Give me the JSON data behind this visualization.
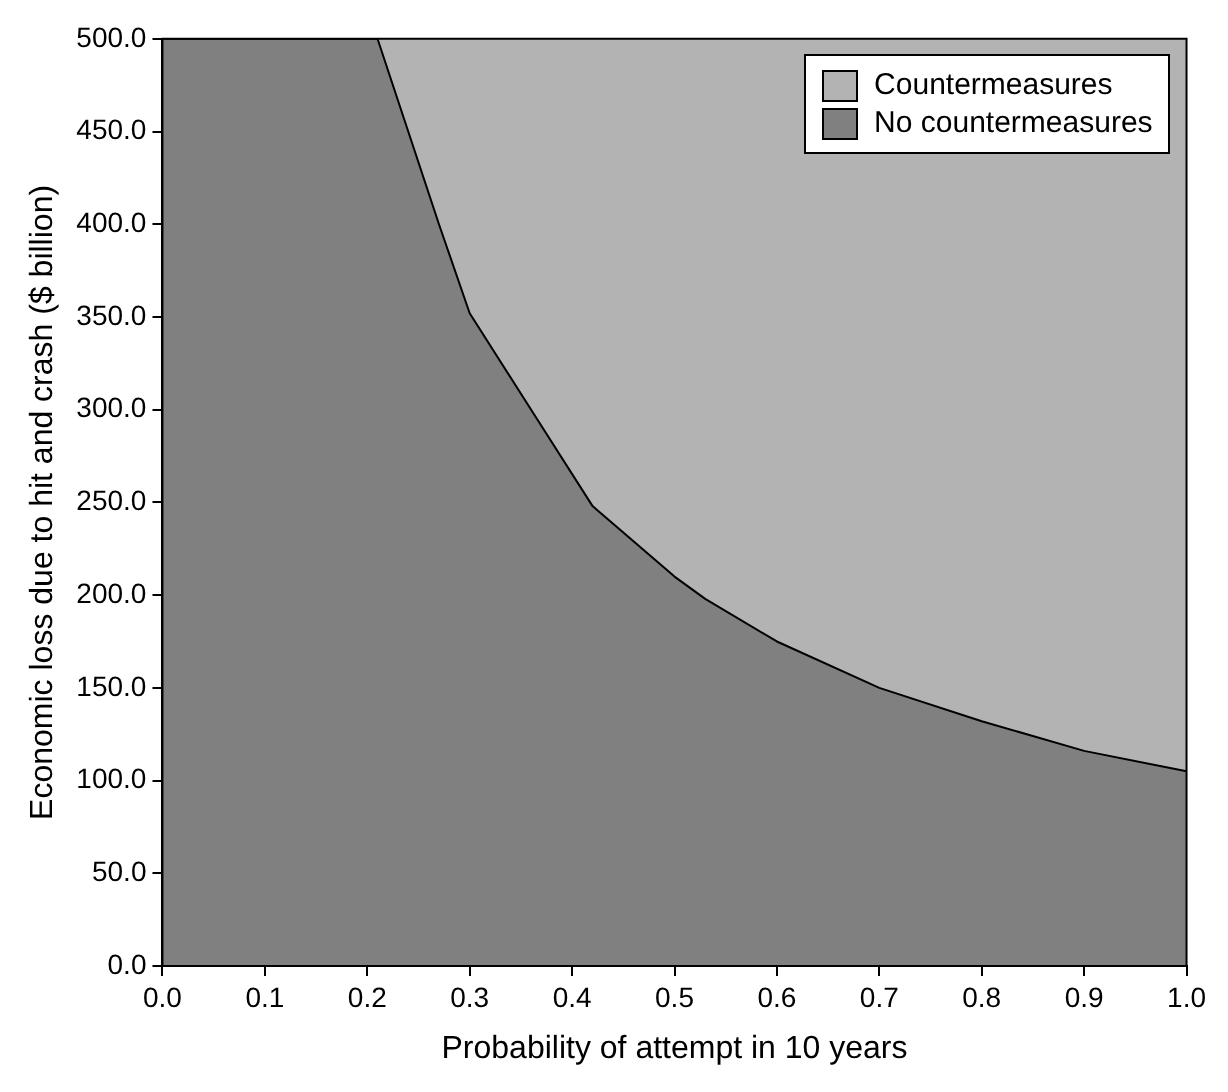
{
  "chart_data": {
    "type": "area",
    "stacked": true,
    "xlabel": "Probability of attempt in 10 years",
    "ylabel": "Economic loss due to hit and crash ($ billion)",
    "series": [
      {
        "name": "No countermeasures",
        "color": "#808080",
        "values": [
          500,
          500,
          450,
          400,
          352,
          300,
          248,
          210,
          198,
          175,
          150,
          132,
          116,
          105
        ]
      },
      {
        "name": "Countermeasures",
        "color": "#b3b3b3",
        "values": [
          0,
          0,
          50,
          100,
          148,
          200,
          252,
          290,
          302,
          325,
          350,
          368,
          384,
          395
        ]
      }
    ],
    "x": [
      0.0,
      0.21,
      0.24,
      0.27,
      0.3,
      0.36,
      0.42,
      0.5,
      0.53,
      0.6,
      0.7,
      0.8,
      0.9,
      1.0
    ],
    "xlim": [
      0,
      1
    ],
    "xticks": [
      {
        "value": 0,
        "label": "0.0"
      },
      {
        "value": 0.1,
        "label": "0.1"
      },
      {
        "value": 0.2,
        "label": "0.2"
      },
      {
        "value": 0.3,
        "label": "0.3"
      },
      {
        "value": 0.4,
        "label": "0.4"
      },
      {
        "value": 0.5,
        "label": "0.5"
      },
      {
        "value": 0.6,
        "label": "0.6"
      },
      {
        "value": 0.7,
        "label": "0.7"
      },
      {
        "value": 0.8,
        "label": "0.8"
      },
      {
        "value": 0.9,
        "label": "0.9"
      },
      {
        "value": 1,
        "label": "1.0"
      }
    ],
    "ylim": [
      0,
      500
    ],
    "yticks": [
      {
        "value": 0,
        "label": "0.0"
      },
      {
        "value": 50,
        "label": "50.0"
      },
      {
        "value": 100,
        "label": "100.0"
      },
      {
        "value": 150,
        "label": "150.0"
      },
      {
        "value": 200,
        "label": "200.0"
      },
      {
        "value": 250,
        "label": "250.0"
      },
      {
        "value": 300,
        "label": "300.0"
      },
      {
        "value": 350,
        "label": "350.0"
      },
      {
        "value": 400,
        "label": "400.0"
      },
      {
        "value": 450,
        "label": "450.0"
      },
      {
        "value": 500,
        "label": "500.0"
      }
    ],
    "grid": false,
    "legend": "top right",
    "marker": "none",
    "line_style": "solid"
  }
}
